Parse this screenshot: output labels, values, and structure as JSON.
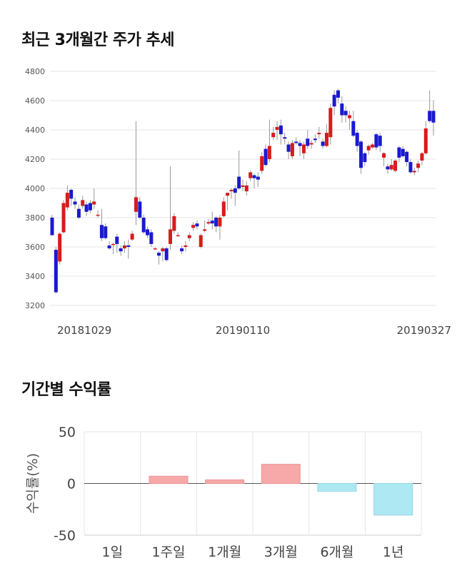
{
  "titles": {
    "price": "최근 3개월간 주가 추세",
    "returns": "기간별 수익률"
  },
  "colors": {
    "up": "#d81b1b",
    "down": "#1a1ad0",
    "wick": "#999999",
    "grid": "#e6e6e6",
    "bar_positive": "#f7a8a8",
    "bar_positive_border": "#e99393",
    "bar_negative": "#aee9f3",
    "bar_negative_border": "#8fd6e4"
  },
  "chart_data": [
    {
      "type": "candlestick",
      "title": "최근 3개월간 주가 추세",
      "ylim": [
        3200,
        4800
      ],
      "yticks": [
        3200,
        3400,
        3600,
        3800,
        4000,
        4200,
        4400,
        4600,
        4800
      ],
      "xtick_labels": [
        "20181029",
        "20190110",
        "20190327"
      ],
      "grid": true,
      "candles": [
        [
          3800,
          3680,
          3820,
          3680
        ],
        [
          3580,
          3290,
          3600,
          3280
        ],
        [
          3500,
          3690,
          3700,
          3480
        ],
        [
          3700,
          3900,
          3920,
          3690
        ],
        [
          3870,
          3970,
          4020,
          3850
        ],
        [
          3990,
          3930,
          4000,
          3880
        ],
        [
          3910,
          3890,
          3940,
          3860
        ],
        [
          3860,
          3800,
          3890,
          3790
        ],
        [
          3880,
          3920,
          3950,
          3860
        ],
        [
          3890,
          3840,
          3910,
          3810
        ],
        [
          3900,
          3850,
          3920,
          3830
        ],
        [
          3890,
          3910,
          4000,
          3860
        ],
        [
          3820,
          3820,
          3850,
          3800
        ],
        [
          3750,
          3660,
          3860,
          3640
        ],
        [
          3740,
          3660,
          3760,
          3650
        ],
        [
          3610,
          3590,
          3640,
          3580
        ],
        [
          3620,
          3620,
          3630,
          3550
        ],
        [
          3670,
          3620,
          3690,
          3560
        ],
        [
          3590,
          3570,
          3610,
          3540
        ],
        [
          3590,
          3610,
          3640,
          3560
        ],
        [
          3610,
          3600,
          3650,
          3520
        ],
        [
          3650,
          3690,
          3710,
          3640
        ],
        [
          3840,
          3940,
          4460,
          3750
        ],
        [
          3910,
          3800,
          3940,
          3790
        ],
        [
          3800,
          3700,
          3820,
          3690
        ],
        [
          3720,
          3680,
          3740,
          3660
        ],
        [
          3700,
          3620,
          3720,
          3600
        ],
        [
          3590,
          3590,
          3600,
          3580
        ],
        [
          3560,
          3540,
          3570,
          3480
        ],
        [
          3570,
          3590,
          3600,
          3500
        ],
        [
          3590,
          3510,
          3600,
          3500
        ],
        [
          3620,
          3720,
          4150,
          3580
        ],
        [
          3710,
          3810,
          3830,
          3690
        ],
        [
          3680,
          3680,
          3700,
          3670
        ],
        [
          3590,
          3570,
          3610,
          3550
        ],
        [
          3600,
          3610,
          3640,
          3570
        ],
        [
          3660,
          3680,
          3700,
          3640
        ],
        [
          3730,
          3750,
          3770,
          3710
        ],
        [
          3760,
          3740,
          3780,
          3720
        ],
        [
          3600,
          3680,
          3690,
          3590
        ],
        [
          3710,
          3720,
          3780,
          3700
        ],
        [
          3760,
          3770,
          3790,
          3750
        ],
        [
          3780,
          3760,
          3840,
          3720
        ],
        [
          3800,
          3740,
          3810,
          3700
        ],
        [
          3740,
          3800,
          3820,
          3650
        ],
        [
          3810,
          3910,
          3940,
          3800
        ],
        [
          3950,
          3970,
          3970,
          3850
        ],
        [
          3980,
          3990,
          4000,
          3930
        ],
        [
          4000,
          3970,
          4020,
          3880
        ],
        [
          4080,
          4000,
          4260,
          3990
        ],
        [
          4010,
          4020,
          4060,
          3980
        ],
        [
          3980,
          4020,
          4050,
          3950
        ],
        [
          4070,
          4110,
          4120,
          4050
        ],
        [
          4090,
          4070,
          4100,
          4000
        ],
        [
          4080,
          4060,
          4110,
          4010
        ],
        [
          4120,
          4220,
          4250,
          4100
        ],
        [
          4270,
          4160,
          4300,
          4150
        ],
        [
          4200,
          4290,
          4470,
          4180
        ],
        [
          4350,
          4380,
          4420,
          4330
        ],
        [
          4400,
          4420,
          4460,
          4330
        ],
        [
          4430,
          4370,
          4470,
          4300
        ],
        [
          4350,
          4340,
          4380,
          4300
        ],
        [
          4300,
          4250,
          4320,
          4200
        ],
        [
          4220,
          4310,
          4330,
          4200
        ],
        [
          4320,
          4310,
          4350,
          4300
        ],
        [
          4310,
          4290,
          4330,
          4220
        ],
        [
          4240,
          4300,
          4320,
          4200
        ],
        [
          4340,
          4290,
          4400,
          4270
        ],
        [
          4300,
          4310,
          4330,
          4270
        ],
        [
          4340,
          4330,
          4370,
          4310
        ],
        [
          4370,
          4380,
          4420,
          4340
        ],
        [
          4320,
          4290,
          4340,
          4270
        ],
        [
          4290,
          4380,
          4440,
          4280
        ],
        [
          4350,
          4550,
          4580,
          4300
        ],
        [
          4640,
          4560,
          4670,
          4500
        ],
        [
          4670,
          4620,
          4680,
          4580
        ],
        [
          4580,
          4500,
          4630,
          4450
        ],
        [
          4530,
          4500,
          4560,
          4450
        ],
        [
          4480,
          4500,
          4530,
          4400
        ],
        [
          4460,
          4360,
          4530,
          4350
        ],
        [
          4380,
          4290,
          4400,
          4250
        ],
        [
          4320,
          4140,
          4330,
          4100
        ],
        [
          4240,
          4180,
          4250,
          4150
        ],
        [
          4260,
          4290,
          4300,
          4230
        ],
        [
          4280,
          4300,
          4310,
          4270
        ],
        [
          4370,
          4280,
          4380,
          4260
        ],
        [
          4360,
          4290,
          4380,
          4250
        ],
        [
          4210,
          4240,
          4250,
          4150
        ],
        [
          4150,
          4130,
          4170,
          4100
        ],
        [
          4130,
          4160,
          4200,
          4120
        ],
        [
          4120,
          4190,
          4200,
          4110
        ],
        [
          4280,
          4210,
          4290,
          4180
        ],
        [
          4270,
          4220,
          4290,
          4210
        ],
        [
          4250,
          4180,
          4260,
          4150
        ],
        [
          4180,
          4110,
          4200,
          4100
        ],
        [
          4110,
          4120,
          4140,
          4090
        ],
        [
          4140,
          4170,
          4190,
          4110
        ],
        [
          4190,
          4240,
          4250,
          4160
        ],
        [
          4240,
          4410,
          4460,
          4230
        ],
        [
          4530,
          4460,
          4670,
          4450
        ],
        [
          4530,
          4450,
          4600,
          4360
        ]
      ]
    },
    {
      "type": "bar",
      "title": "기간별 수익률",
      "categories": [
        "1일",
        "1주일",
        "1개월",
        "3개월",
        "6개월",
        "1년"
      ],
      "values": [
        0,
        7,
        3.5,
        18.5,
        -7.5,
        -30.5
      ],
      "ylabel": "수익률(%)",
      "ylim": [
        -50,
        50
      ],
      "yticks": [
        50,
        0,
        -50
      ],
      "grid": true
    }
  ]
}
